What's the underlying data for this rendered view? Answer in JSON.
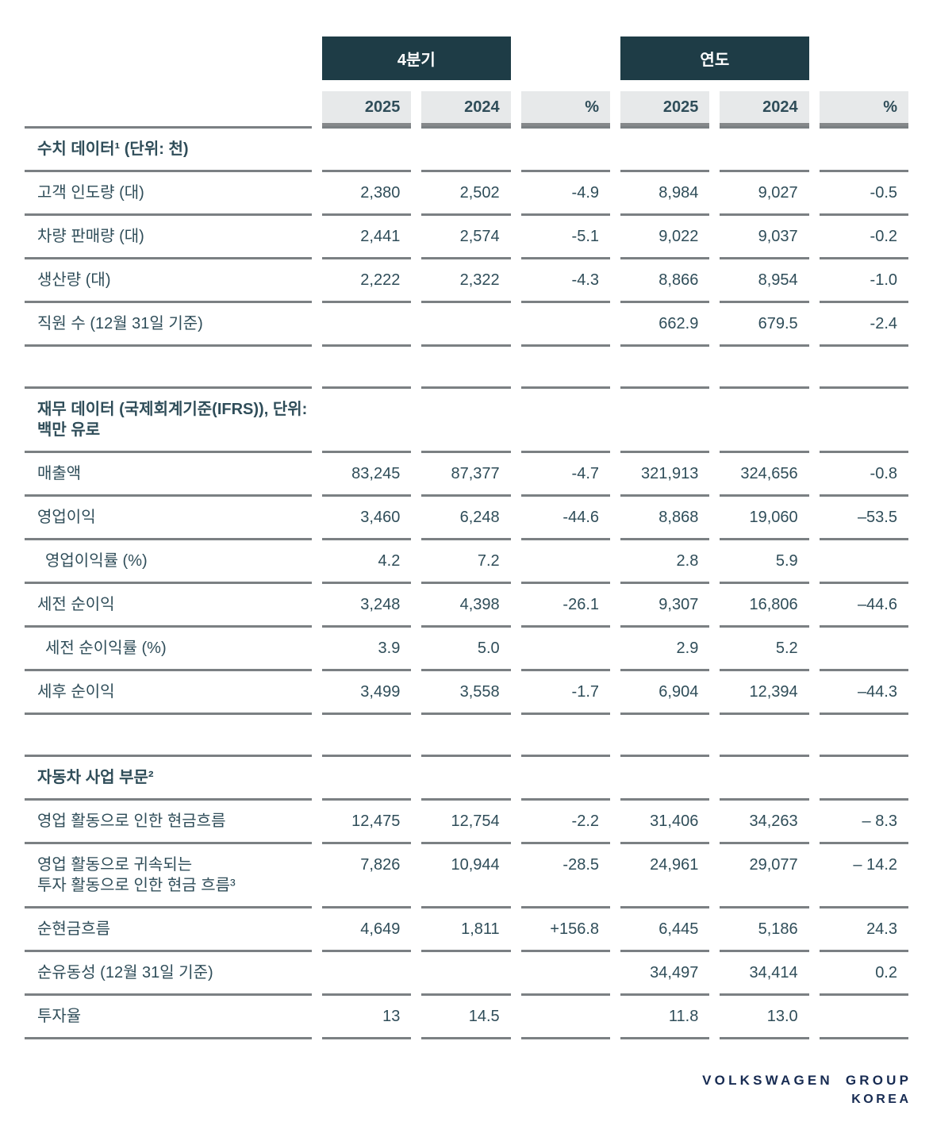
{
  "header": {
    "group_q4": "4분기",
    "group_year": "연도",
    "columns": [
      "2025",
      "2024",
      "%",
      "2025",
      "2024",
      "%"
    ]
  },
  "sections": [
    {
      "title": "수치 데이터¹ (단위: 천)",
      "rows": [
        {
          "label": "고객 인도량 (대)",
          "values": [
            "2,380",
            "2,502",
            "-4.9",
            "8,984",
            "9,027",
            "-0.5"
          ]
        },
        {
          "label": "차량 판매량 (대)",
          "values": [
            "2,441",
            "2,574",
            "-5.1",
            "9,022",
            "9,037",
            "-0.2"
          ]
        },
        {
          "label": "생산량 (대)",
          "values": [
            "2,222",
            "2,322",
            "-4.3",
            "8,866",
            "8,954",
            "-1.0"
          ]
        },
        {
          "label": "직원 수 (12월 31일 기준)",
          "values": [
            "",
            "",
            "",
            "662.9",
            "679.5",
            "-2.4"
          ]
        }
      ]
    },
    {
      "title": "재무 데이터 (국제회계기준(IFRS)), 단위: 백만 유로",
      "rows": [
        {
          "label": "매출액",
          "values": [
            "83,245",
            "87,377",
            "-4.7",
            "321,913",
            "324,656",
            "-0.8"
          ]
        },
        {
          "label": "영업이익",
          "values": [
            "3,460",
            "6,248",
            "-44.6",
            "8,868",
            "19,060",
            "–53.5"
          ]
        },
        {
          "label": "영업이익률 (%)",
          "indent": true,
          "values": [
            "4.2",
            "7.2",
            "",
            "2.8",
            "5.9",
            ""
          ]
        },
        {
          "label": "세전 순이익",
          "values": [
            "3,248",
            "4,398",
            "-26.1",
            "9,307",
            "16,806",
            "–44.6"
          ]
        },
        {
          "label": "세전 순이익률 (%)",
          "indent": true,
          "values": [
            "3.9",
            "5.0",
            "",
            "2.9",
            "5.2",
            ""
          ]
        },
        {
          "label": "세후 순이익",
          "values": [
            "3,499",
            "3,558",
            "-1.7",
            "6,904",
            "12,394",
            "–44.3"
          ]
        }
      ]
    },
    {
      "title": "자동차 사업 부문²",
      "rows": [
        {
          "label": "영업 활동으로 인한 현금흐름",
          "values": [
            "12,475",
            "12,754",
            "-2.2",
            "31,406",
            "34,263",
            "– 8.3"
          ]
        },
        {
          "label": "영업 활동으로 귀속되는\n투자 활동으로 인한 현금 흐름³",
          "values": [
            "7,826",
            "10,944",
            "-28.5",
            "24,961",
            "29,077",
            "– 14.2"
          ]
        },
        {
          "label": "순현금흐름",
          "values": [
            "4,649",
            "1,811",
            "+156.8",
            "6,445",
            "5,186",
            "24.3"
          ]
        },
        {
          "label": "순유동성 (12월 31일 기준)",
          "values": [
            "",
            "",
            "",
            "34,497",
            "34,414",
            "0.2"
          ]
        },
        {
          "label": "투자율",
          "values": [
            "13",
            "14.5",
            "",
            "11.8",
            "13.0",
            ""
          ]
        }
      ]
    }
  ],
  "footer": {
    "logo_line1": "VOLKSWAGEN GROUP",
    "logo_line2": "KOREA"
  },
  "colors": {
    "dark_header": "#1e3c46",
    "header_cell_bg": "#e7e9ea",
    "row_border": "#7b8083",
    "text": "#2f4d59",
    "logo": "#172b52"
  }
}
